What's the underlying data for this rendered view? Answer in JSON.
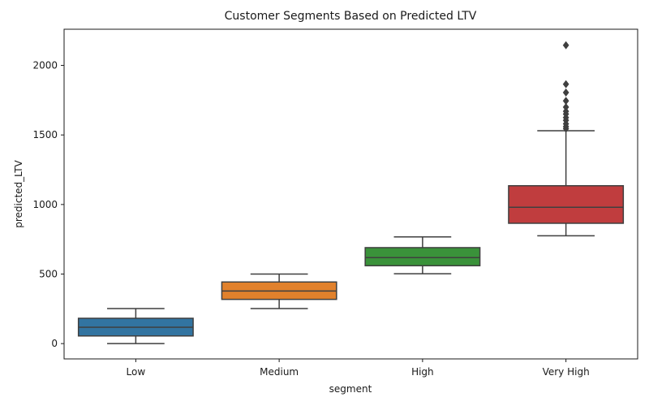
{
  "chart_data": {
    "type": "box",
    "title": "Customer Segments Based on Predicted LTV",
    "xlabel": "segment",
    "ylabel": "predicted_LTV",
    "ylim": [
      -110,
      2260
    ],
    "yticks": [
      0,
      500,
      1000,
      1500,
      2000
    ],
    "grid": false,
    "categories": [
      "Low",
      "Medium",
      "High",
      "Very High"
    ],
    "colors": [
      "#3274a1",
      "#e1812c",
      "#3a923a",
      "#c03d3e"
    ],
    "boxes": [
      {
        "category": "Low",
        "whisker_low": 0,
        "q1": 55,
        "median": 118,
        "q3": 182,
        "whisker_high": 252,
        "outliers": []
      },
      {
        "category": "Medium",
        "whisker_low": 252,
        "q1": 318,
        "median": 378,
        "q3": 443,
        "whisker_high": 500,
        "outliers": []
      },
      {
        "category": "High",
        "whisker_low": 502,
        "q1": 560,
        "median": 618,
        "q3": 690,
        "whisker_high": 767,
        "outliers": []
      },
      {
        "category": "Very High",
        "whisker_low": 775,
        "q1": 865,
        "median": 980,
        "q3": 1135,
        "whisker_high": 1530,
        "outliers": [
          1545,
          1560,
          1580,
          1605,
          1625,
          1650,
          1670,
          1700,
          1745,
          1805,
          1865,
          2145
        ]
      }
    ]
  }
}
